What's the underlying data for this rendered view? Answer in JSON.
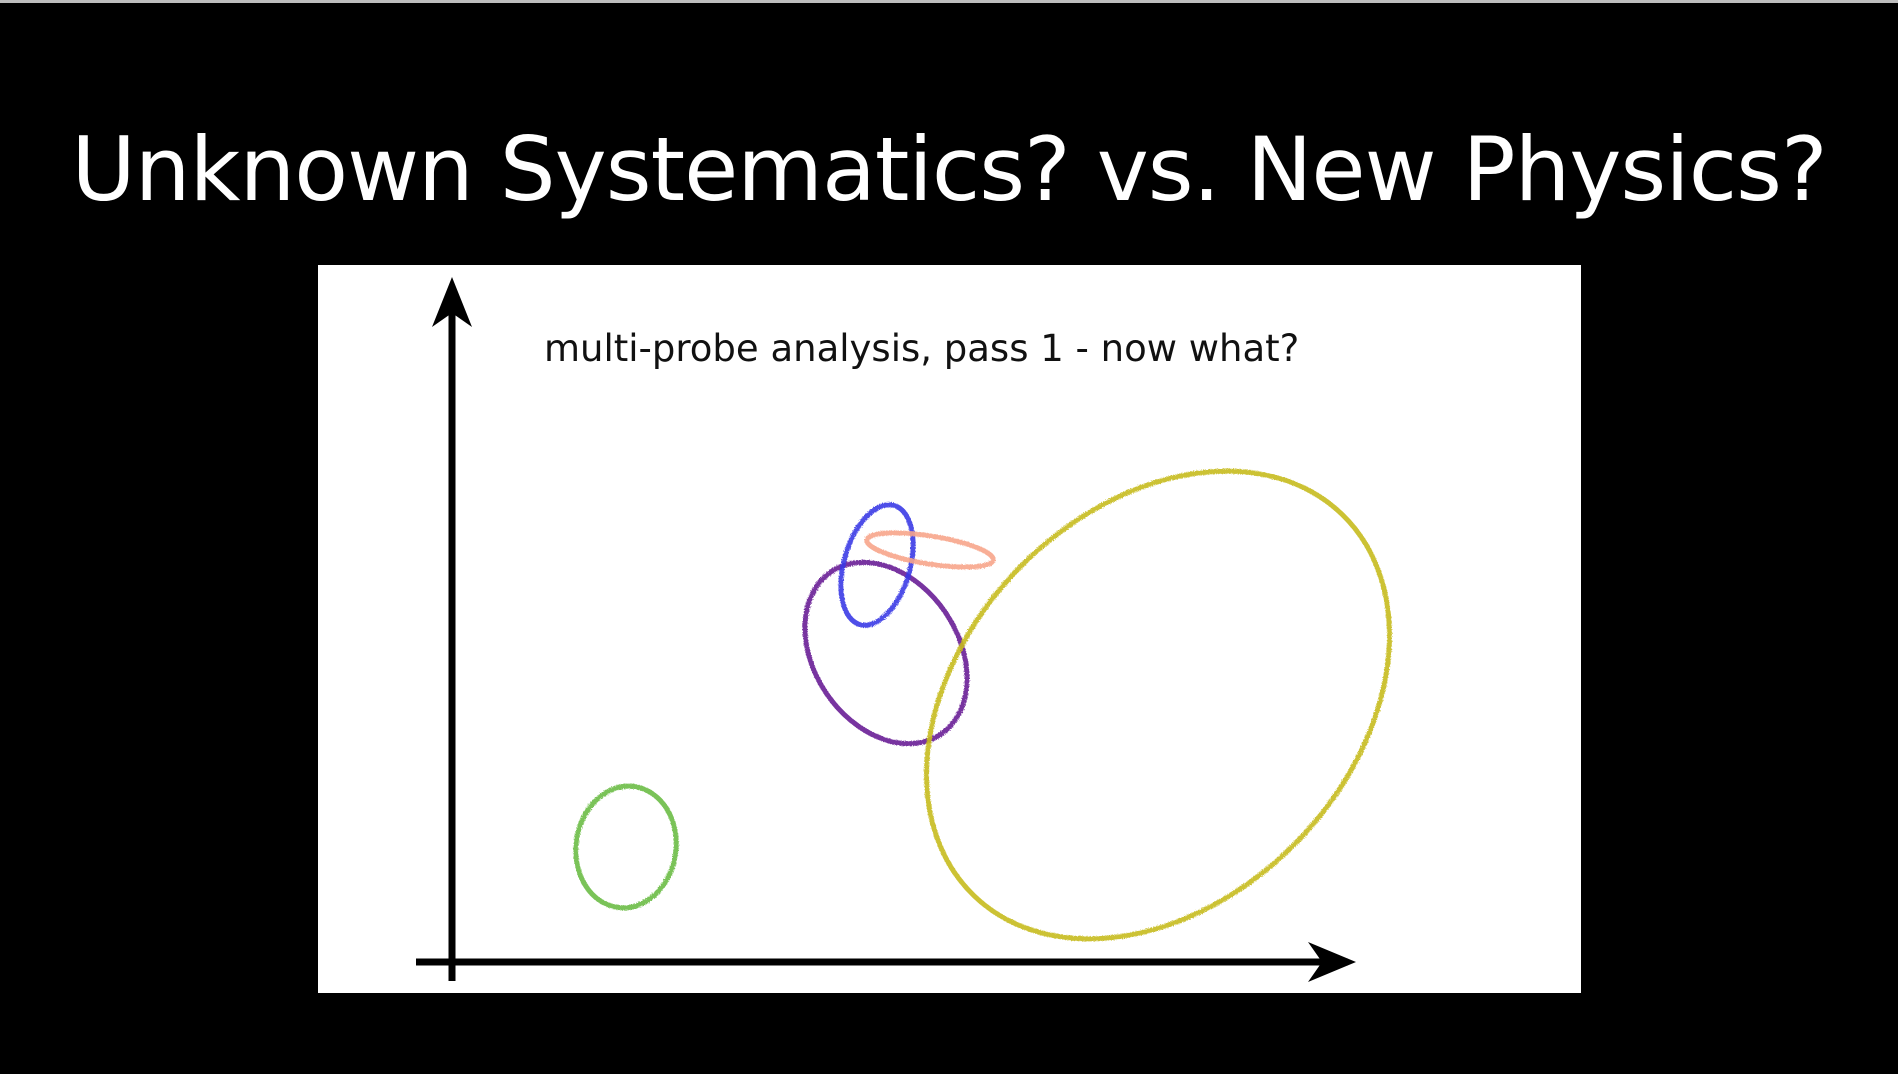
{
  "slide": {
    "title": "Unknown Systematics? vs. New Physics?",
    "background_color": "#000000",
    "title_color": "#ffffff"
  },
  "figure": {
    "caption": "multi-probe analysis, pass 1 - now what?",
    "panel_color": "#ffffff",
    "axis_color": "#000000",
    "contours": [
      {
        "name": "green-contour",
        "color": "#6cbd45"
      },
      {
        "name": "blue-contour",
        "color": "#3a3ae6"
      },
      {
        "name": "salmon-contour",
        "color": "#f7a58b"
      },
      {
        "name": "purple-contour",
        "color": "#6a1f96"
      },
      {
        "name": "olive-contour",
        "color": "#c6bb1e"
      }
    ]
  }
}
